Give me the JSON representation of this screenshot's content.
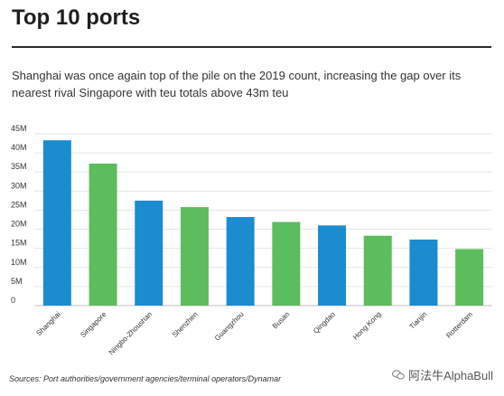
{
  "header": {
    "title": "Top 10 ports",
    "subtitle": "Shanghai was once again top of the pile on the 2019 count, increasing the gap over its nearest rival Singapore with teu totals above 43m teu"
  },
  "footer": {
    "source": "Sources: Port authorities/government agencies/terminal operators/Dynamar",
    "watermark": "阿法牛AlphaBull"
  },
  "colors": {
    "blue": "#1a8ccf",
    "green": "#5cbd5c"
  },
  "chart_data": {
    "type": "bar",
    "title": "Top 10 ports",
    "categories": [
      "Shanghai",
      "Singapore",
      "Ningbo-Zhoushan",
      "Shenzhen",
      "Guangzhou",
      "Busan",
      "Qingdao",
      "Hong Kong",
      "Tianjin",
      "Rotterdam"
    ],
    "values": [
      43.3,
      37.2,
      27.5,
      25.8,
      23.2,
      21.9,
      21.0,
      18.3,
      17.3,
      14.8
    ],
    "bar_colors": [
      "blue",
      "green",
      "blue",
      "green",
      "blue",
      "green",
      "blue",
      "green",
      "blue",
      "green"
    ],
    "y_ticks": [
      "0",
      "5M",
      "10M",
      "15M",
      "20M",
      "25M",
      "30M",
      "35M",
      "40M",
      "45M"
    ],
    "ylim": [
      0,
      45
    ],
    "unit": "M",
    "grid": true,
    "legend": "none"
  }
}
